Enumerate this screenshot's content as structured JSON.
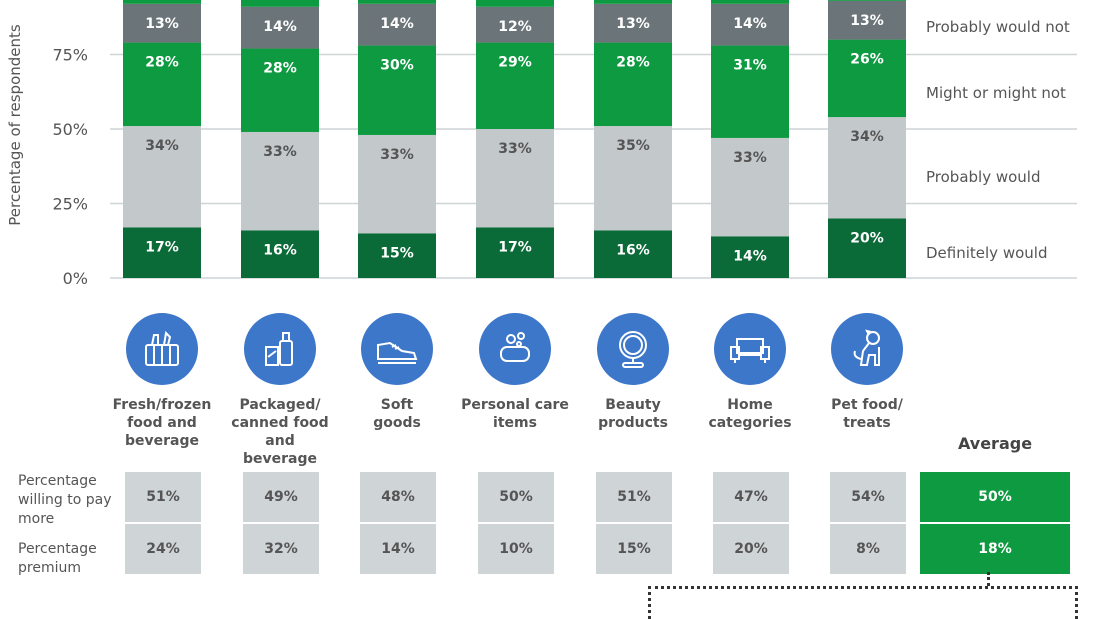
{
  "chart_data": {
    "type": "bar",
    "stacked": true,
    "ylabel": "Percentage of respondents",
    "yticks": [
      "0%",
      "25%",
      "50%",
      "75%"
    ],
    "ylim": [
      0,
      100
    ],
    "categories": [
      "Fresh/frozen\nfood and\nbeverage",
      "Packaged/\ncanned food and\nbeverage",
      "Soft\ngoods",
      "Personal care\nitems",
      "Beauty\nproducts",
      "Home\ncategories",
      "Pet food/\ntreats"
    ],
    "series": [
      {
        "name": "Definitely would",
        "color": "#0b6b38",
        "values": [
          17,
          16,
          15,
          17,
          16,
          14,
          20
        ]
      },
      {
        "name": "Probably would",
        "color": "#c3c9cb",
        "values": [
          34,
          33,
          33,
          33,
          35,
          33,
          34
        ]
      },
      {
        "name": "Might or might not",
        "color": "#0e9a40",
        "values": [
          28,
          28,
          30,
          29,
          28,
          31,
          26
        ]
      },
      {
        "name": "Probably would not",
        "color": "#6b7478",
        "values": [
          13,
          14,
          14,
          12,
          13,
          14,
          13
        ]
      }
    ],
    "legend_position": "right"
  },
  "icons": [
    "grocery-basket-icon",
    "bottles-icon",
    "shoe-icon",
    "soap-icon",
    "mirror-icon",
    "sofa-icon",
    "dog-icon"
  ],
  "table": {
    "average_title": "Average",
    "rows": [
      {
        "label": "Percentage\nwilling to pay\nmore",
        "values": [
          "51%",
          "49%",
          "48%",
          "50%",
          "51%",
          "47%",
          "54%"
        ],
        "average": "50%"
      },
      {
        "label": "Percentage\npremium",
        "values": [
          "24%",
          "32%",
          "14%",
          "10%",
          "15%",
          "20%",
          "8%"
        ],
        "average": "18%"
      }
    ]
  }
}
